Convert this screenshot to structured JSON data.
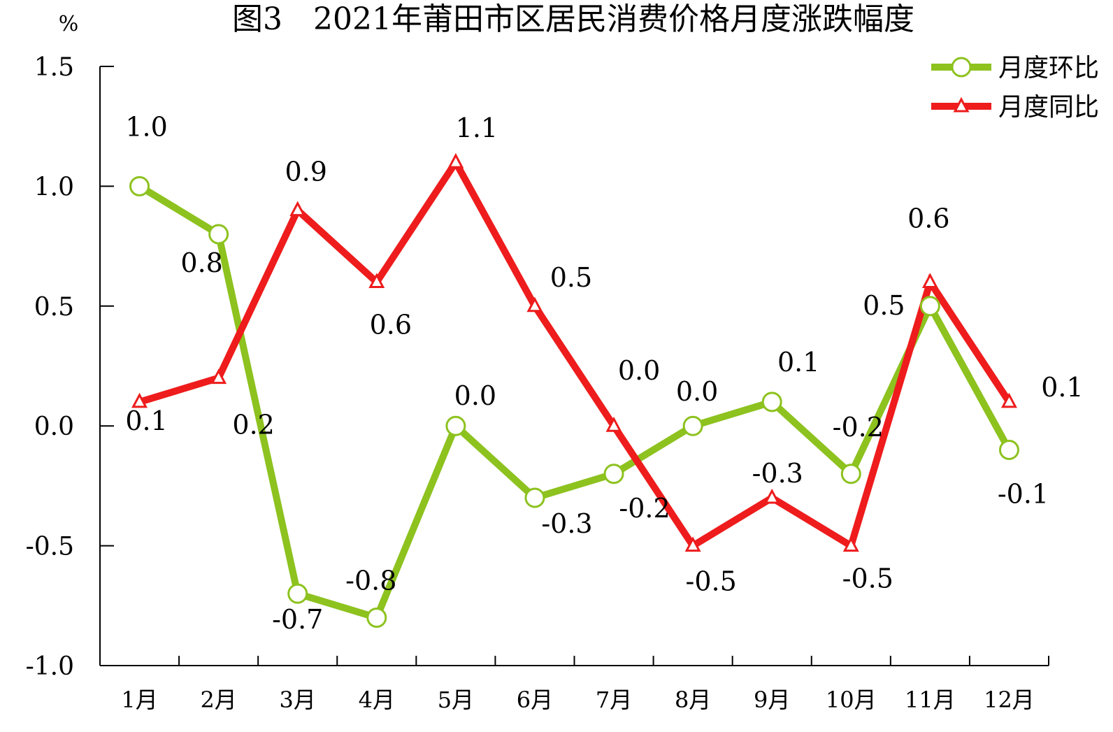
{
  "chart_data": {
    "type": "line",
    "title": "图3　2021年莆田市区居民消费价格月度涨跌幅度",
    "ylabel": "%",
    "ylim": [
      -1.0,
      1.5
    ],
    "yticks": [
      "1.5",
      "1.0",
      "0.5",
      "0.0",
      "-0.5",
      "-1.0"
    ],
    "categories": [
      "1月",
      "2月",
      "3月",
      "4月",
      "5月",
      "6月",
      "7月",
      "8月",
      "9月",
      "10月",
      "11月",
      "12月"
    ],
    "series": [
      {
        "name": "月度环比",
        "color": "#8dc21f",
        "marker": "circle",
        "values": [
          1.0,
          0.8,
          -0.7,
          -0.8,
          0.0,
          -0.3,
          -0.2,
          0.0,
          0.1,
          -0.2,
          0.5,
          -0.1
        ],
        "labels": [
          "1.0",
          "0.8",
          "-0.7",
          "-0.8",
          "0.0",
          "-0.3",
          "-0.2",
          "0.0",
          "0.1",
          "-0.2",
          "0.5",
          "-0.1"
        ]
      },
      {
        "name": "月度同比",
        "color": "#ee1c1c",
        "marker": "triangle",
        "values": [
          0.1,
          0.2,
          0.9,
          0.6,
          1.1,
          0.5,
          0.0,
          -0.5,
          -0.3,
          -0.5,
          0.6,
          0.1
        ],
        "labels": [
          "0.1",
          "0.2",
          "0.9",
          "0.6",
          "1.1",
          "0.5",
          "0.0",
          "-0.5",
          "-0.3",
          "-0.5",
          "0.6",
          "0.1"
        ]
      }
    ],
    "legend_position": "top-right",
    "grid": false
  }
}
